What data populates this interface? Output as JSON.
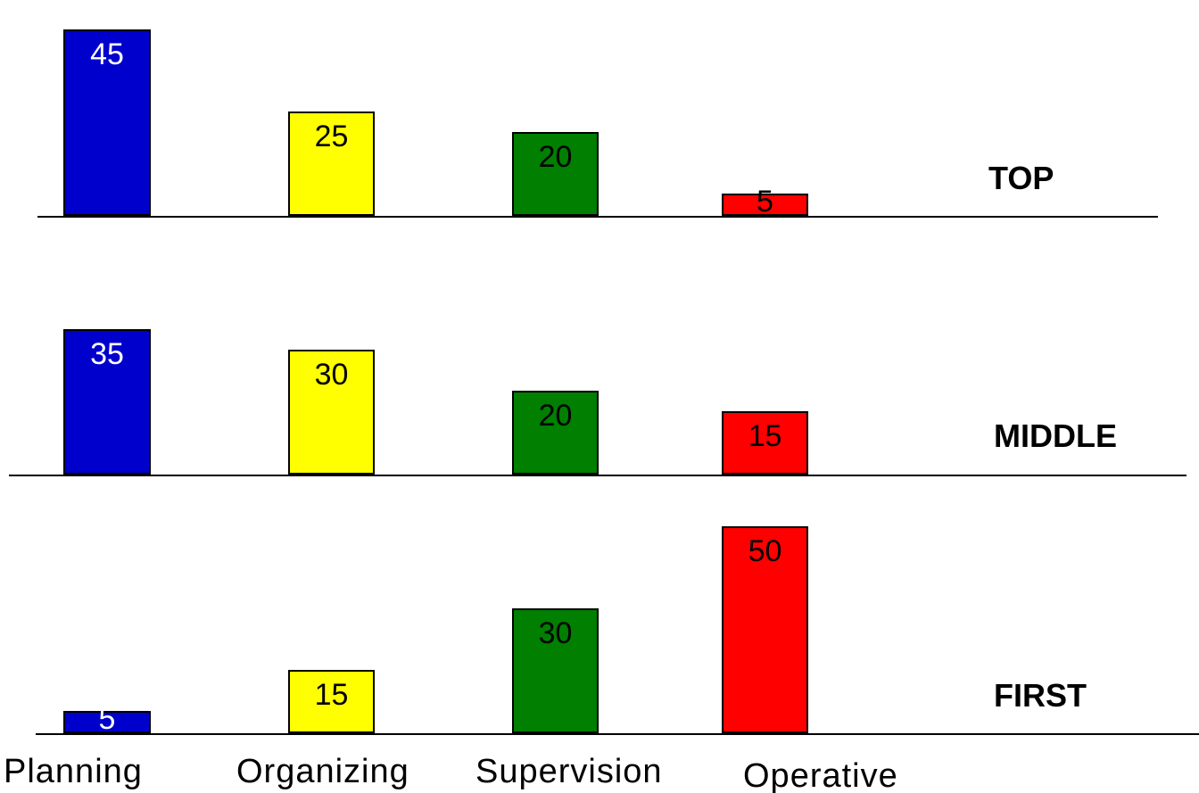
{
  "chart_data": {
    "type": "bar",
    "categories": [
      "Planning",
      "Organizing",
      "Supervision",
      "Operative"
    ],
    "colors": [
      "#0000cc",
      "#ffff00",
      "#007f00",
      "#ff0000"
    ],
    "value_text_colors": [
      "#ffffff",
      "#000000",
      "#000000",
      "#000000"
    ],
    "panels": [
      {
        "label": "TOP",
        "values": [
          45,
          25,
          20,
          5
        ]
      },
      {
        "label": "MIDDLE",
        "values": [
          35,
          30,
          20,
          15
        ]
      },
      {
        "label": "FIRST",
        "values": [
          5,
          15,
          30,
          50
        ]
      }
    ]
  }
}
